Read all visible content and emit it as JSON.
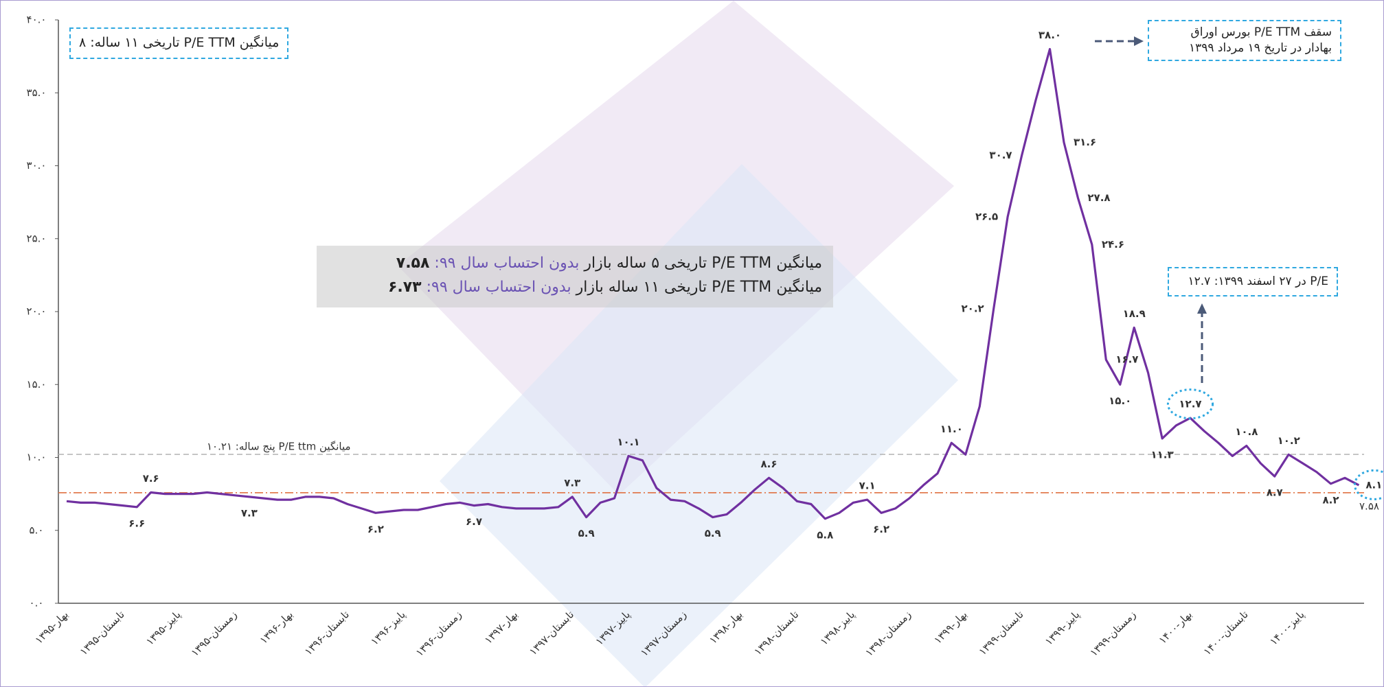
{
  "chart_data": {
    "type": "line",
    "categories": [
      "بهار-۱۳۹۵",
      null,
      null,
      null,
      "تابستان-۱۳۹۵",
      null,
      null,
      null,
      "پاییز-۱۳۹۵",
      null,
      null,
      null,
      "زمستان-۱۳۹۵",
      null,
      null,
      null,
      "بهار-۱۳۹۶",
      null,
      null,
      null,
      "تابستان-۱۳۹۶",
      null,
      null,
      null,
      "پاییز-۱۳۹۶",
      null,
      null,
      null,
      "زمستان-۱۳۹۶",
      null,
      null,
      null,
      "بهار-۱۳۹۷",
      null,
      null,
      null,
      "تابستان-۱۳۹۷",
      null,
      null,
      null,
      "پاییز-۱۳۹۷",
      null,
      null,
      null,
      "زمستان-۱۳۹۷",
      null,
      null,
      null,
      "بهار-۱۳۹۸",
      null,
      null,
      null,
      "تابستان-۱۳۹۸",
      null,
      null,
      null,
      "پاییز-۱۳۹۸",
      null,
      null,
      null,
      "زمستان-۱۳۹۸",
      null,
      null,
      null,
      "بهار-۱۳۹۹",
      null,
      null,
      null,
      "تابستان-۱۳۹۹",
      null,
      null,
      null,
      "پاییز-۱۳۹۹",
      null,
      null,
      null,
      "زمستان-۱۳۹۹",
      null,
      null,
      null,
      "بهار-۱۴۰۰",
      null,
      null,
      null,
      "تابستان-۱۴۰۰",
      null,
      null,
      null,
      "پاییز-۱۴۰۰",
      null,
      null,
      null,
      null
    ],
    "series": [
      {
        "color": "#7030a0",
        "values": [
          7.0,
          6.9,
          6.9,
          6.8,
          6.7,
          6.6,
          7.6,
          7.5,
          7.5,
          7.5,
          7.6,
          7.5,
          7.4,
          7.3,
          7.2,
          7.1,
          7.1,
          7.3,
          7.3,
          7.2,
          6.8,
          6.5,
          6.2,
          6.3,
          6.4,
          6.4,
          6.6,
          6.8,
          6.9,
          6.7,
          6.8,
          6.6,
          6.5,
          6.5,
          6.5,
          6.6,
          7.3,
          5.9,
          6.9,
          7.2,
          10.1,
          9.8,
          7.9,
          7.1,
          7.0,
          6.5,
          5.9,
          6.1,
          6.9,
          7.8,
          8.6,
          7.9,
          7.0,
          6.8,
          5.8,
          6.2,
          6.9,
          7.1,
          6.2,
          6.5,
          7.2,
          8.1,
          8.9,
          11.0,
          10.2,
          13.5,
          20.2,
          26.5,
          30.7,
          34.5,
          38.0,
          31.6,
          27.8,
          24.6,
          16.7,
          15.0,
          18.9,
          15.8,
          11.3,
          12.2,
          12.7,
          11.8,
          11.0,
          10.1,
          10.8,
          9.6,
          8.7,
          10.2,
          9.6,
          9.0,
          8.2,
          8.6,
          8.1
        ],
        "value_labels": [
          null,
          null,
          null,
          null,
          null,
          "۶.۶",
          "۷.۶",
          null,
          null,
          null,
          null,
          null,
          null,
          "۷.۳",
          null,
          null,
          null,
          null,
          null,
          null,
          null,
          null,
          "۶.۲",
          null,
          null,
          null,
          null,
          null,
          null,
          "۶.۷",
          null,
          null,
          null,
          null,
          null,
          null,
          "۷.۳",
          "۵.۹",
          null,
          null,
          "۱۰.۱",
          null,
          null,
          null,
          null,
          null,
          "۵.۹",
          null,
          null,
          null,
          "۸.۶",
          null,
          null,
          null,
          "۵.۸",
          null,
          null,
          "۷.۱",
          "۶.۲",
          null,
          null,
          null,
          null,
          "۱۱.۰",
          null,
          null,
          "۲۰.۲",
          "۲۶.۵",
          "۳۰.۷",
          null,
          "۳۸.۰",
          "۳۱.۶",
          "۲۷.۸",
          "۲۴.۶",
          "۱۶.۷",
          "۱۵.۰",
          "۱۸.۹",
          null,
          "۱۱.۳",
          null,
          "۱۲.۷",
          null,
          null,
          null,
          "۱۰.۸",
          null,
          "۸.۷",
          "۱۰.۲",
          null,
          null,
          "۸.۲",
          null,
          "۸.۱"
        ]
      }
    ],
    "ylim": [
      0,
      40
    ],
    "yticks": [
      {
        "value": 0,
        "label": "۰.۰"
      },
      {
        "value": 5,
        "label": "۵.۰"
      },
      {
        "value": 10,
        "label": "۱۰.۰"
      },
      {
        "value": 15,
        "label": "۱۵.۰"
      },
      {
        "value": 20,
        "label": "۲۰.۰"
      },
      {
        "value": 25,
        "label": "۲۵.۰"
      },
      {
        "value": 30,
        "label": "۳۰.۰"
      },
      {
        "value": 35,
        "label": "۳۵.۰"
      },
      {
        "value": 40,
        "label": "۴۰.۰"
      }
    ],
    "reference_lines": [
      {
        "value": 10.21,
        "label": "میانگین  P/E ttm پنج ساله: ۱۰.۲۱",
        "color": "#b8b8b8"
      },
      {
        "value": 7.58,
        "label": "میانگین P/E ttm پنج ساله بدون احتساب سال ۱۳۹۹: ۷.۵۸",
        "color": "#e07040"
      }
    ],
    "annotations": {
      "avg11": "میانگین P/E TTM  تاریخی ۱۱ ساله: ۸",
      "peak": [
        "سقف   P/E TTM  بورس اوراق",
        "بهادار در تاریخ ۱۹ مرداد ۱۳۹۹"
      ],
      "esfand": "P/E در ۲۷ اسفند ۱۳۹۹: ۱۲.۷",
      "notes": [
        {
          "prefix": "میانگین P/E TTM تاریخی ۵ ساله بازار",
          "highlight": "بدون احتساب سال ۹۹:",
          "value": "۷.۵۸"
        },
        {
          "prefix": "میانگین P/E TTM  تاریخی ۱۱ ساله بازار",
          "highlight": "بدون احتساب سال ۹۹:",
          "value": "۶.۷۳"
        }
      ]
    }
  }
}
